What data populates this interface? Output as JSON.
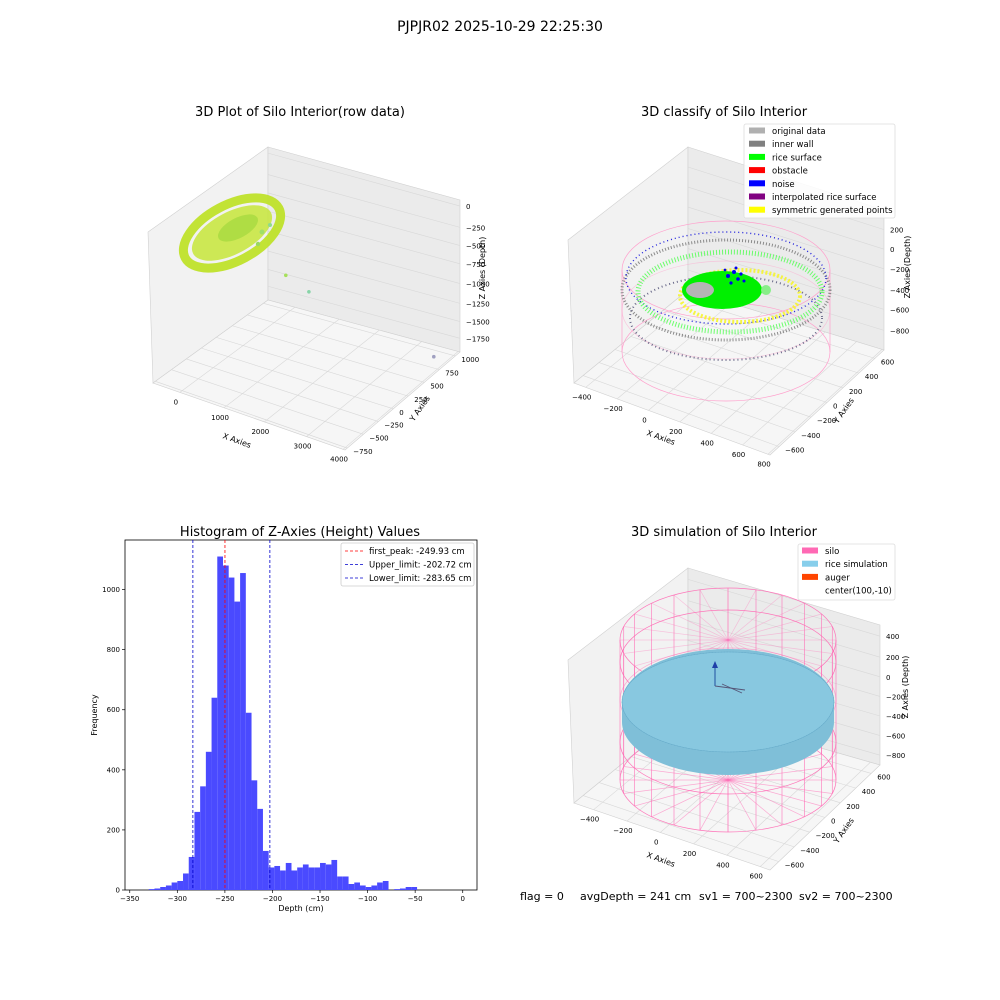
{
  "figure": {
    "title": "PJPJR02 2025-10-29 22:25:30",
    "status": {
      "flag": "flag = 0",
      "avg_depth": "avgDepth = 241 cm",
      "sv1": "sv1 = 700~2300",
      "sv2": "sv2 = 700~2300"
    }
  },
  "chart_data": [
    {
      "type": "scatter",
      "title": "3D Plot of Silo Interior(row data)",
      "xlabel": "X Axies",
      "ylabel": "Y Axies",
      "zlabel": "Z Axies (Depth)",
      "x_ticks": [
        "0",
        "1000",
        "2000",
        "3000",
        "4000"
      ],
      "y_ticks": [
        "−750",
        "−500",
        "−250",
        "0",
        "250",
        "500",
        "750",
        "1000"
      ],
      "z_ticks": [
        "0",
        "−250",
        "−500",
        "−750",
        "−1000",
        "−1250",
        "−1500",
        "−1750"
      ],
      "xlim": [
        -600,
        4200
      ],
      "ylim": [
        -750,
        1100
      ],
      "zlim": [
        -1850,
        100
      ],
      "series": [
        {
          "points": [
            [
              3700,
              1000,
              -1750
            ],
            [
              1900,
              150,
              -750
            ],
            [
              1400,
              100,
              -600
            ],
            [
              1100,
              80,
              -550
            ],
            [
              950,
              200,
              -480
            ]
          ]
        }
      ],
      "grid": true
    },
    {
      "type": "scatter",
      "title": "3D classify of Silo Interior",
      "xlabel": "X Axies",
      "ylabel": "Y Axies",
      "zlabel": "Z Axies (Depth)",
      "x_ticks": [
        "−400",
        "−200",
        "0",
        "200",
        "400",
        "600",
        "800"
      ],
      "y_ticks": [
        "−600",
        "−400",
        "−200",
        "0",
        "200",
        "400",
        "600"
      ],
      "z_ticks": [
        "−800",
        "−600",
        "−400",
        "−200",
        "0",
        "200"
      ],
      "xlim": [
        -500,
        820
      ],
      "ylim": [
        -650,
        650
      ],
      "zlim": [
        -900,
        450
      ],
      "legend": [
        {
          "label": "original data",
          "color": "#b0b0b0"
        },
        {
          "label": "inner wall",
          "color": "#808080"
        },
        {
          "label": "rice surface",
          "color": "#00ff00"
        },
        {
          "label": "obstacle",
          "color": "#ff0000"
        },
        {
          "label": "noise",
          "color": "#0000ff"
        },
        {
          "label": "interpolated rice surface",
          "color": "#800080"
        },
        {
          "label": "symmetric generated points",
          "color": "#ffff00"
        }
      ],
      "legend_position": "top-right",
      "grid": true
    },
    {
      "type": "bar",
      "title": "Histogram of Z-Axies (Height) Values",
      "xlabel": "Depth (cm)",
      "ylabel": "Frequency",
      "x_ticks": [
        -350,
        -300,
        -250,
        -200,
        -150,
        -100,
        -50,
        0
      ],
      "y_ticks": [
        0,
        200,
        400,
        600,
        800,
        1000
      ],
      "xlim": [
        -355,
        15
      ],
      "ylim": [
        0,
        1165
      ],
      "bin_start": -330,
      "bin_width": 6.0,
      "values": [
        3,
        5,
        10,
        15,
        25,
        30,
        55,
        110,
        260,
        345,
        460,
        640,
        1110,
        1080,
        1040,
        960,
        1055,
        590,
        365,
        270,
        130,
        75,
        80,
        65,
        90,
        65,
        75,
        85,
        75,
        75,
        90,
        85,
        100,
        45,
        45,
        20,
        25,
        15,
        10,
        15,
        25,
        30,
        0,
        3,
        5,
        10,
        10
      ],
      "bar_color": "#4a4aff",
      "lines": [
        {
          "label": "first_peak: -249.93 cm",
          "x": -249.93,
          "color": "#ff0000"
        },
        {
          "label": "Upper_limit: -202.72 cm",
          "x": -202.72,
          "color": "#0000cc"
        },
        {
          "label": "Lower_limit: -283.65 cm",
          "x": -283.65,
          "color": "#0000cc"
        }
      ],
      "legend_position": "top-right"
    },
    {
      "type": "scatter",
      "title": "3D simulation of Silo Interior",
      "xlabel": "X Axies",
      "ylabel": "Y Axies",
      "zlabel": "Z Axies (Depth)",
      "x_ticks": [
        "−400",
        "−200",
        "0",
        "200",
        "400",
        "600"
      ],
      "y_ticks": [
        "−600",
        "−400",
        "−200",
        "0",
        "200",
        "400",
        "600"
      ],
      "z_ticks": [
        "−800",
        "−600",
        "−400",
        "−200",
        "0",
        "200",
        "400"
      ],
      "xlim": [
        -500,
        700
      ],
      "ylim": [
        -650,
        650
      ],
      "zlim": [
        -900,
        450
      ],
      "legend": [
        {
          "label": "silo",
          "color": "#ff69b4"
        },
        {
          "label": "rice simulation",
          "color": "#87ceeb"
        },
        {
          "label": "auger",
          "color": "#ff4500"
        },
        {
          "label": "center(100,-10)",
          "color": "#ffffff"
        }
      ],
      "legend_position": "top-right",
      "grid": true
    }
  ]
}
